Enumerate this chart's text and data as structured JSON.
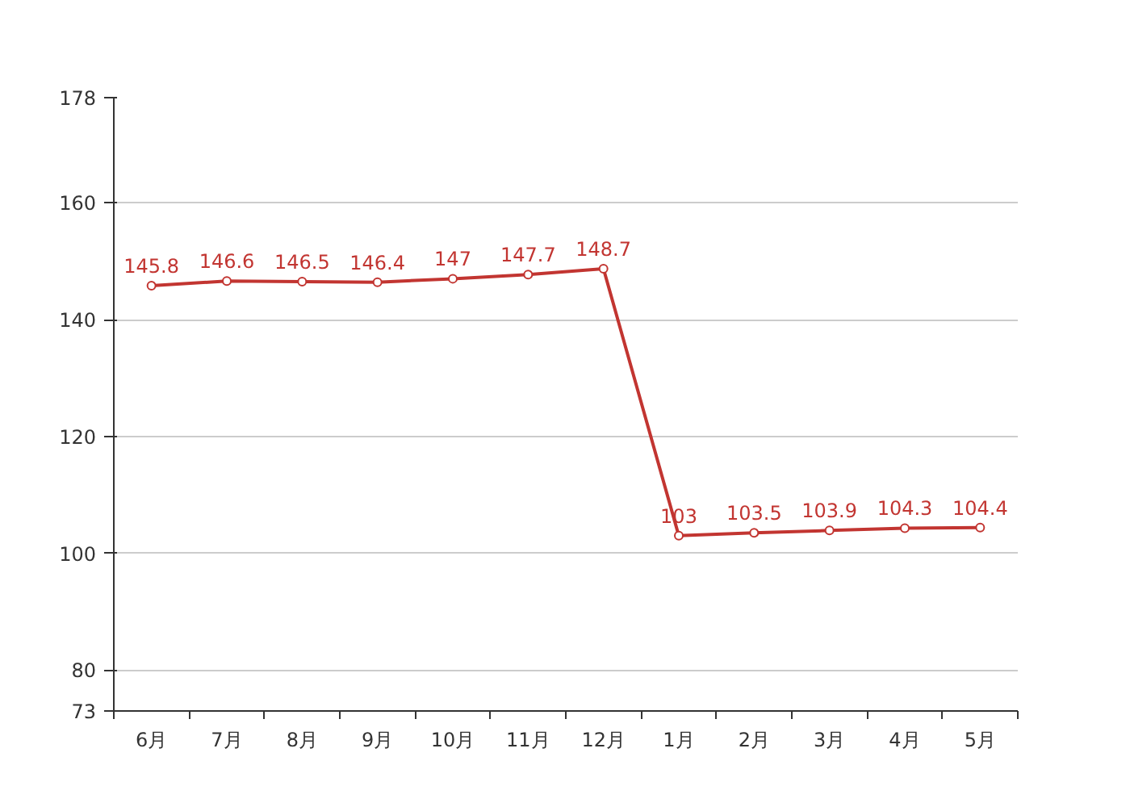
{
  "chart_data": {
    "type": "line",
    "categories": [
      "6月",
      "7月",
      "8月",
      "9月",
      "10月",
      "11月",
      "12月",
      "1月",
      "2月",
      "3月",
      "4月",
      "5月"
    ],
    "series": [
      {
        "color": "#c23531",
        "values": [
          145.8,
          146.6,
          146.5,
          146.4,
          147,
          147.7,
          148.7,
          103,
          103.5,
          103.9,
          104.3,
          104.4
        ]
      }
    ],
    "ylim": [
      73,
      178
    ],
    "yticks": [
      73,
      80,
      100,
      120,
      140,
      160,
      178
    ],
    "grid": "y",
    "marker": "circle",
    "line_style": "solid",
    "data_labels": true
  }
}
